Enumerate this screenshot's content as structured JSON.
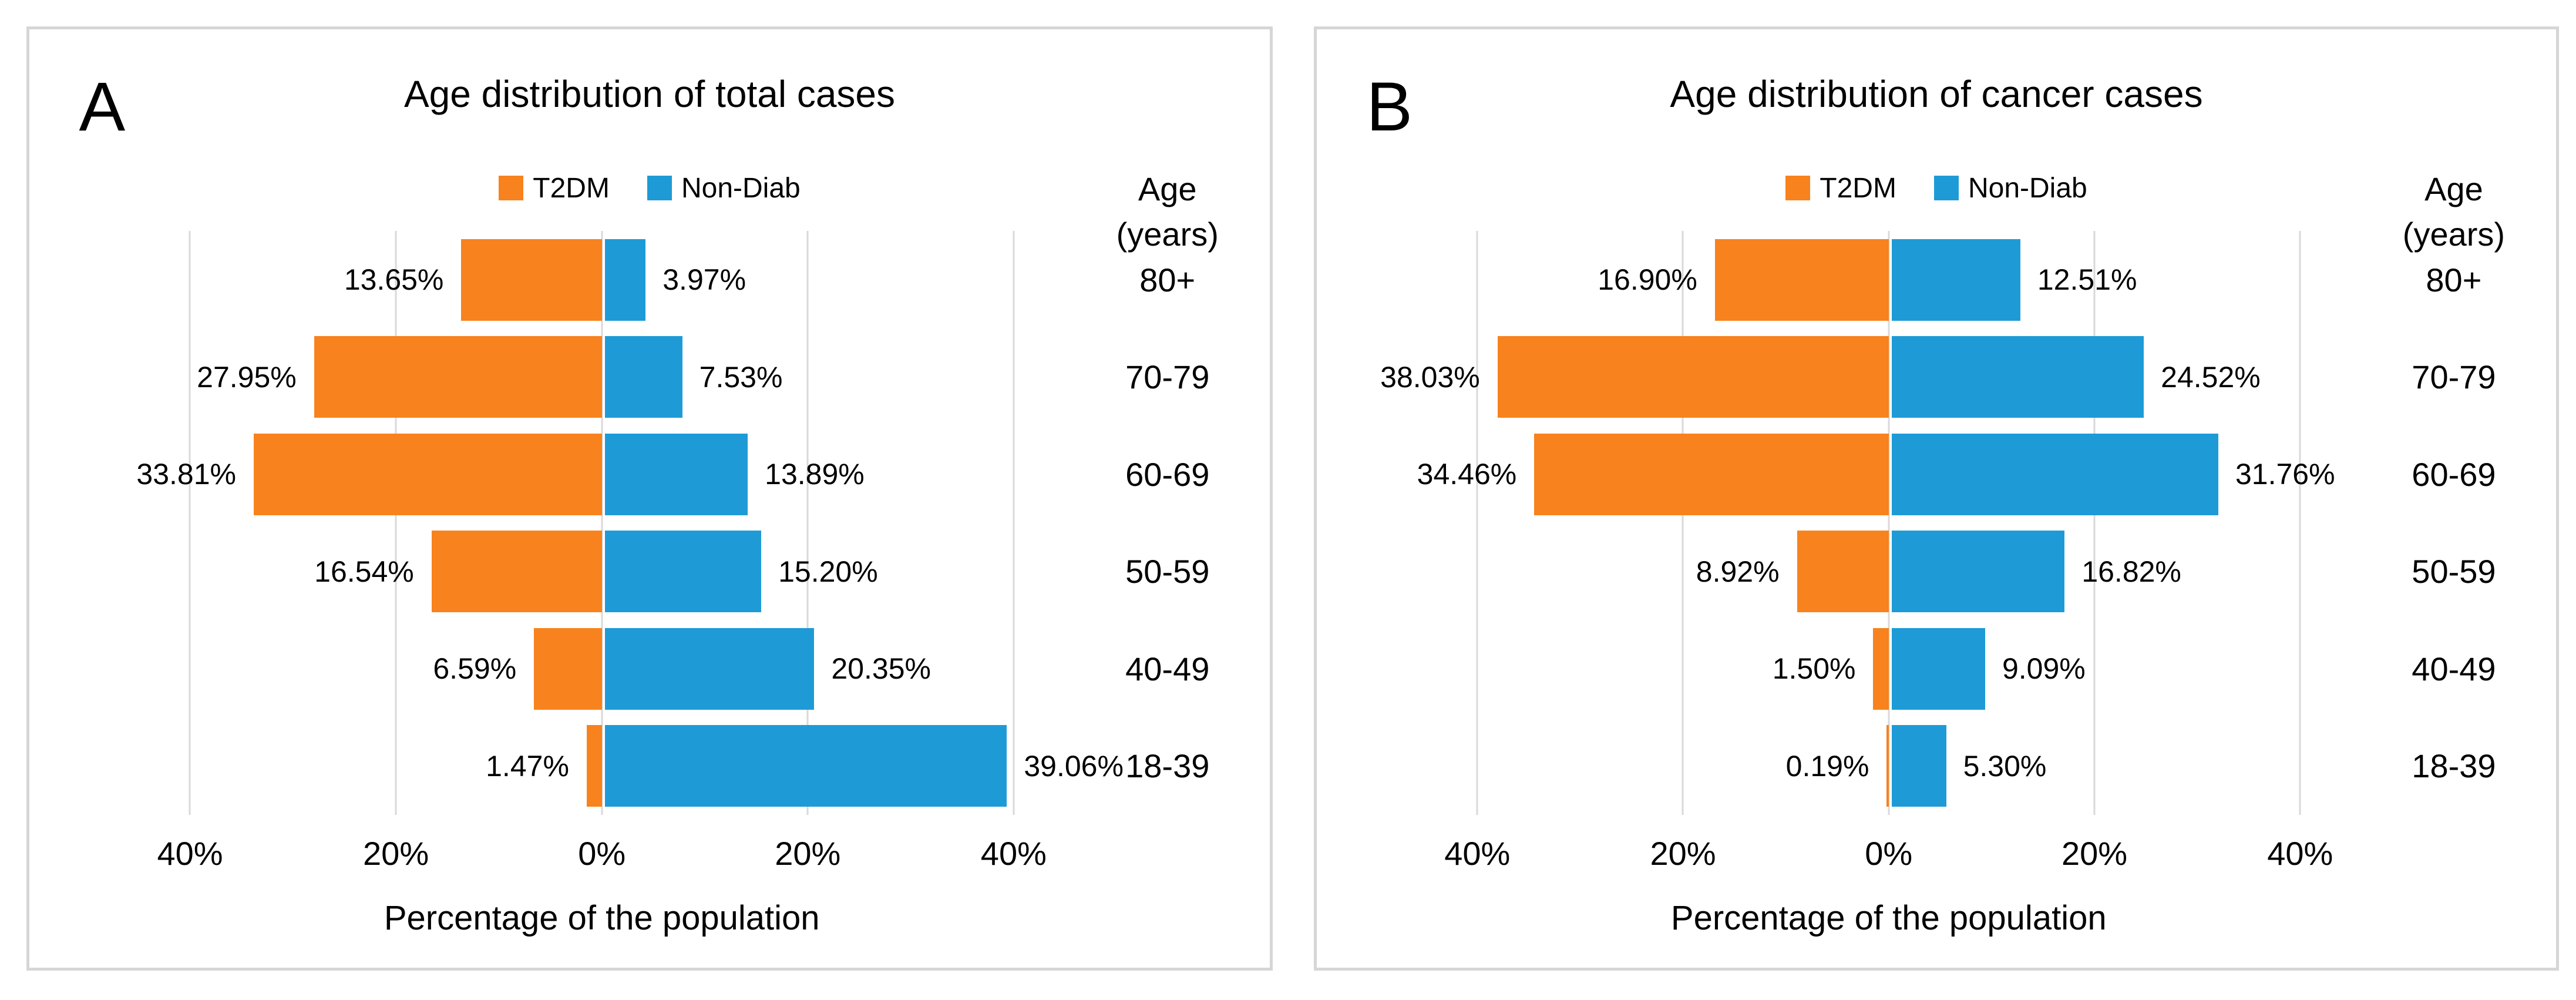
{
  "styles": {
    "grid_color": "#D9D9D9",
    "border_color": "#D6D6D6",
    "text_color": "#000000",
    "background": "#FFFFFF"
  },
  "chart_data": [
    {
      "type": "bar",
      "variant": "population-pyramid",
      "panel_label": "A",
      "title": "Age distribution of total cases",
      "xlabel": "Percentage of the population",
      "ylabel_lines": [
        "Age",
        "(years)"
      ],
      "categories": [
        "80+",
        "70-79",
        "60-69",
        "50-59",
        "40-49",
        "18-39"
      ],
      "series": [
        {
          "name": "T2DM",
          "side": "left",
          "color": "#F8821E",
          "values": [
            13.65,
            27.95,
            33.81,
            16.54,
            6.59,
            1.47
          ],
          "labels": [
            "13.65%",
            "27.95%",
            "33.81%",
            "16.54%",
            "6.59%",
            "1.47%"
          ]
        },
        {
          "name": "Non-Diab",
          "side": "right",
          "color": "#1E9BD7",
          "values": [
            3.97,
            7.53,
            13.89,
            15.2,
            20.35,
            39.06
          ],
          "labels": [
            "3.97%",
            "7.53%",
            "13.89%",
            "15.20%",
            "20.35%",
            "39.06%"
          ]
        }
      ],
      "x_ticks": [
        "40%",
        "20%",
        "0%",
        "20%",
        "40%"
      ],
      "x_tick_values": [
        -40,
        -20,
        0,
        20,
        40
      ],
      "xlim": [
        -45,
        45
      ],
      "grid": true,
      "legend_position": "top-center"
    },
    {
      "type": "bar",
      "variant": "population-pyramid",
      "panel_label": "B",
      "title": "Age distribution of cancer cases",
      "xlabel": "Percentage of the population",
      "ylabel_lines": [
        "Age",
        "(years)"
      ],
      "categories": [
        "80+",
        "70-79",
        "60-69",
        "50-59",
        "40-49",
        "18-39"
      ],
      "series": [
        {
          "name": "T2DM",
          "side": "left",
          "color": "#F8821E",
          "values": [
            16.9,
            38.03,
            34.46,
            8.92,
            1.5,
            0.19
          ],
          "labels": [
            "16.90%",
            "38.03%",
            "34.46%",
            "8.92%",
            "1.50%",
            "0.19%"
          ]
        },
        {
          "name": "Non-Diab",
          "side": "right",
          "color": "#1E9BD7",
          "values": [
            12.51,
            24.52,
            31.76,
            16.82,
            9.09,
            5.3
          ],
          "labels": [
            "12.51%",
            "24.52%",
            "31.76%",
            "16.82%",
            "9.09%",
            "5.30%"
          ]
        }
      ],
      "x_ticks": [
        "40%",
        "20%",
        "0%",
        "20%",
        "40%"
      ],
      "x_tick_values": [
        -40,
        -20,
        0,
        20,
        40
      ],
      "xlim": [
        -45,
        45
      ],
      "grid": true,
      "legend_position": "top-center"
    }
  ]
}
